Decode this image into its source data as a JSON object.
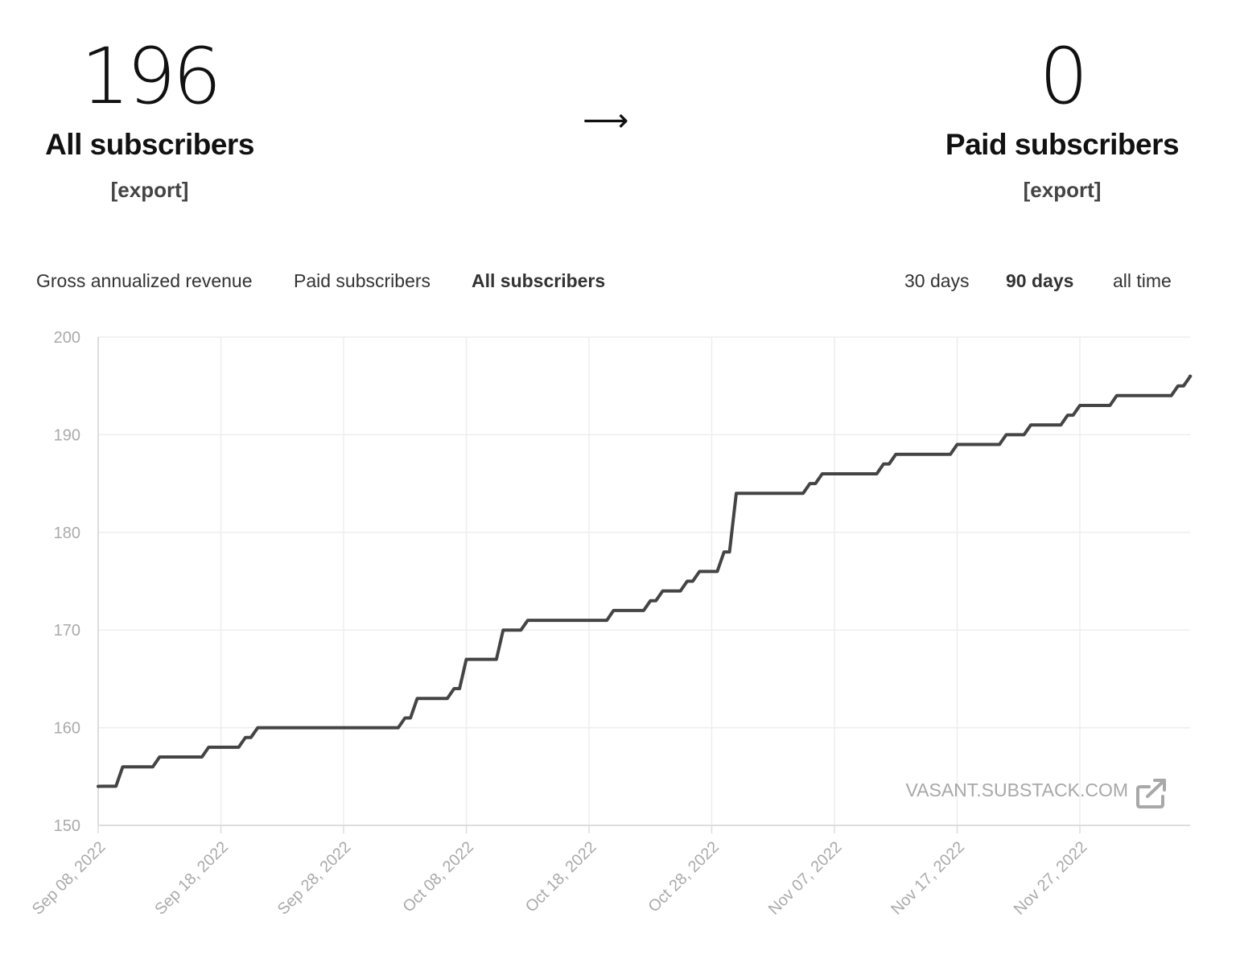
{
  "summary": {
    "all_subscribers": {
      "count": "196",
      "label": "All subscribers",
      "export": "[export]"
    },
    "arrow": "⟶",
    "paid_subscribers": {
      "count": "0",
      "label": "Paid subscribers",
      "export": "[export]"
    }
  },
  "metric_tabs": [
    {
      "label": "Gross annualized revenue",
      "active": false
    },
    {
      "label": "Paid subscribers",
      "active": false
    },
    {
      "label": "All subscribers",
      "active": true
    }
  ],
  "range_tabs": [
    {
      "label": "30 days",
      "active": false
    },
    {
      "label": "90 days",
      "active": true
    },
    {
      "label": "all time",
      "active": false
    }
  ],
  "watermark": {
    "text": "VASANT.SUBSTACK.COM",
    "icon": "external-link-icon"
  },
  "colors": {
    "line": "#444444",
    "grid": "#eeeeee",
    "axis": "#dddddd",
    "tick": "#aaaaaa"
  },
  "chart_data": {
    "type": "line",
    "title": "",
    "xlabel": "",
    "ylabel": "",
    "ylim": [
      150,
      200
    ],
    "yticks": [
      150,
      160,
      170,
      180,
      190,
      200
    ],
    "xticks": [
      "Sep 08, 2022",
      "Sep 18, 2022",
      "Sep 28, 2022",
      "Oct 08, 2022",
      "Oct 18, 2022",
      "Oct 28, 2022",
      "Nov 07, 2022",
      "Nov 17, 2022",
      "Nov 27, 2022"
    ],
    "grid": true,
    "series": [
      {
        "x": [
          "2022-09-08",
          "2022-09-09",
          "2022-09-10",
          "2022-09-11",
          "2022-09-12",
          "2022-09-13",
          "2022-09-14",
          "2022-09-15",
          "2022-09-16",
          "2022-09-17",
          "2022-09-18",
          "2022-09-19",
          "2022-09-20",
          "2022-09-21",
          "2022-09-22",
          "2022-09-23",
          "2022-09-24",
          "2022-09-25",
          "2022-09-26",
          "2022-09-27",
          "2022-09-28",
          "2022-09-29",
          "2022-09-30",
          "2022-10-01",
          "2022-10-02",
          "2022-10-03",
          "2022-10-04",
          "2022-10-05",
          "2022-10-06",
          "2022-10-07",
          "2022-10-08",
          "2022-10-09",
          "2022-10-10",
          "2022-10-11",
          "2022-10-12",
          "2022-10-13",
          "2022-10-14",
          "2022-10-15",
          "2022-10-16",
          "2022-10-17",
          "2022-10-18",
          "2022-10-19",
          "2022-10-20",
          "2022-10-21",
          "2022-10-22",
          "2022-10-23",
          "2022-10-24",
          "2022-10-25",
          "2022-10-26",
          "2022-10-27",
          "2022-10-28",
          "2022-10-29",
          "2022-10-30",
          "2022-10-31",
          "2022-11-01",
          "2022-11-02",
          "2022-11-03",
          "2022-11-04",
          "2022-11-05",
          "2022-11-06",
          "2022-11-07",
          "2022-11-08",
          "2022-11-09",
          "2022-11-10",
          "2022-11-11",
          "2022-11-12",
          "2022-11-13",
          "2022-11-14",
          "2022-11-15",
          "2022-11-16",
          "2022-11-17",
          "2022-11-18",
          "2022-11-19",
          "2022-11-20",
          "2022-11-21",
          "2022-11-22",
          "2022-11-23",
          "2022-11-24",
          "2022-11-25",
          "2022-11-26",
          "2022-11-27",
          "2022-11-28",
          "2022-11-29",
          "2022-11-30",
          "2022-12-01",
          "2022-12-02",
          "2022-12-03",
          "2022-12-04",
          "2022-12-05",
          "2022-12-06"
        ],
        "y": [
          154,
          154,
          156,
          156,
          156,
          157,
          157,
          157,
          157,
          158,
          158,
          158,
          159,
          160,
          160,
          160,
          160,
          160,
          160,
          160,
          160,
          160,
          160,
          160,
          160,
          161,
          163,
          163,
          163,
          164,
          167,
          167,
          167,
          170,
          170,
          171,
          171,
          171,
          171,
          171,
          171,
          171,
          172,
          172,
          172,
          173,
          174,
          174,
          175,
          176,
          176,
          178,
          184,
          184,
          184,
          184,
          184,
          184,
          185,
          186,
          186,
          186,
          186,
          186,
          187,
          188,
          188,
          188,
          188,
          188,
          189,
          189,
          189,
          189,
          190,
          190,
          191,
          191,
          191,
          192,
          193,
          193,
          193,
          194,
          194,
          194,
          194,
          194,
          195,
          196
        ]
      }
    ]
  }
}
